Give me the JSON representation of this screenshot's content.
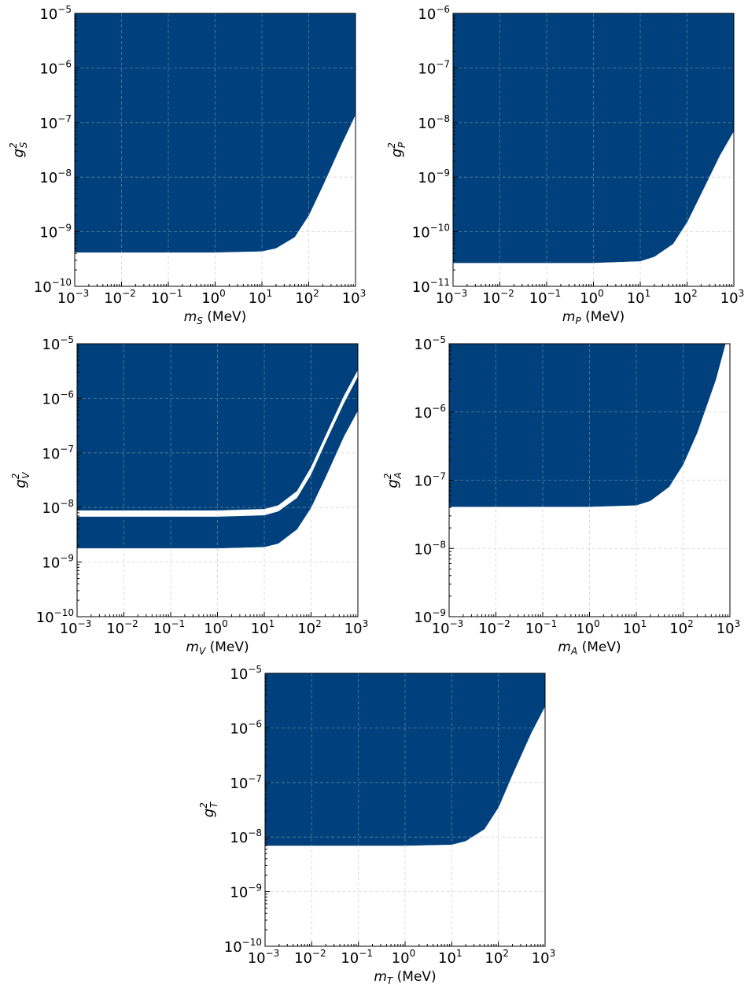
{
  "colors": {
    "fill": "#00417d",
    "gap": "#ffffff",
    "grid": "#b0b0b0"
  },
  "chart_data": [
    {
      "type": "area",
      "xscale": "log",
      "yscale": "log",
      "xlim": [
        0.001,
        1000
      ],
      "ylim": [
        1e-10,
        1e-05
      ],
      "grid": true,
      "xlabel_sym": "m",
      "xlabel_sub": "S",
      "xlabel_unit": "(MeV)",
      "ylabel_sym": "g",
      "ylabel_sup": "2",
      "ylabel_sub": "S",
      "x_ticks": [
        {
          "base": "10",
          "exp": "−3"
        },
        {
          "base": "10",
          "exp": "−2"
        },
        {
          "base": "10",
          "exp": "−1"
        },
        {
          "base": "10",
          "exp": "0"
        },
        {
          "base": "10",
          "exp": "1"
        },
        {
          "base": "10",
          "exp": "2"
        },
        {
          "base": "10",
          "exp": "3"
        }
      ],
      "y_ticks": [
        {
          "base": "10",
          "exp": "−10"
        },
        {
          "base": "10",
          "exp": "−9"
        },
        {
          "base": "10",
          "exp": "−8"
        },
        {
          "base": "10",
          "exp": "−7"
        },
        {
          "base": "10",
          "exp": "−6"
        },
        {
          "base": "10",
          "exp": "−5"
        }
      ],
      "excluded_above": {
        "x": [
          0.001,
          1,
          10,
          20,
          50,
          100,
          200,
          500,
          1000
        ],
        "y": [
          4.2e-10,
          4.2e-10,
          4.4e-10,
          5e-10,
          8e-10,
          2e-09,
          7e-09,
          4e-08,
          1.4e-07
        ]
      }
    },
    {
      "type": "area",
      "xscale": "log",
      "yscale": "log",
      "xlim": [
        0.001,
        1000
      ],
      "ylim": [
        1e-11,
        1e-06
      ],
      "grid": true,
      "xlabel_sym": "m",
      "xlabel_sub": "P",
      "xlabel_unit": "(MeV)",
      "ylabel_sym": "g",
      "ylabel_sup": "2",
      "ylabel_sub": "P",
      "x_ticks": [
        {
          "base": "10",
          "exp": "−3"
        },
        {
          "base": "10",
          "exp": "−2"
        },
        {
          "base": "10",
          "exp": "−1"
        },
        {
          "base": "10",
          "exp": "0"
        },
        {
          "base": "10",
          "exp": "1"
        },
        {
          "base": "10",
          "exp": "2"
        },
        {
          "base": "10",
          "exp": "3"
        }
      ],
      "y_ticks": [
        {
          "base": "10",
          "exp": "−11"
        },
        {
          "base": "10",
          "exp": "−10"
        },
        {
          "base": "10",
          "exp": "−9"
        },
        {
          "base": "10",
          "exp": "−8"
        },
        {
          "base": "10",
          "exp": "−7"
        },
        {
          "base": "10",
          "exp": "−6"
        }
      ],
      "excluded_above": {
        "x": [
          0.001,
          1,
          10,
          20,
          50,
          100,
          200,
          500,
          1000
        ],
        "y": [
          2.7e-11,
          2.7e-11,
          2.9e-11,
          3.5e-11,
          6e-11,
          1.5e-10,
          5e-10,
          2.5e-09,
          7e-09
        ]
      }
    },
    {
      "type": "area",
      "xscale": "log",
      "yscale": "log",
      "xlim": [
        0.001,
        1000
      ],
      "ylim": [
        1e-10,
        1e-05
      ],
      "grid": true,
      "xlabel_sym": "m",
      "xlabel_sub": "V",
      "xlabel_unit": "(MeV)",
      "ylabel_sym": "g",
      "ylabel_sup": "2",
      "ylabel_sub": "V",
      "x_ticks": [
        {
          "base": "10",
          "exp": "−3"
        },
        {
          "base": "10",
          "exp": "−2"
        },
        {
          "base": "10",
          "exp": "−1"
        },
        {
          "base": "10",
          "exp": "0"
        },
        {
          "base": "10",
          "exp": "1"
        },
        {
          "base": "10",
          "exp": "2"
        },
        {
          "base": "10",
          "exp": "3"
        }
      ],
      "y_ticks": [
        {
          "base": "10",
          "exp": "−10"
        },
        {
          "base": "10",
          "exp": "−9"
        },
        {
          "base": "10",
          "exp": "−8"
        },
        {
          "base": "10",
          "exp": "−7"
        },
        {
          "base": "10",
          "exp": "−6"
        },
        {
          "base": "10",
          "exp": "−5"
        }
      ],
      "excluded_above": {
        "x": [
          0.001,
          1,
          10,
          20,
          50,
          100,
          200,
          500,
          1000
        ],
        "y": [
          1.8e-09,
          1.8e-09,
          1.9e-09,
          2.2e-09,
          4e-09,
          1e-08,
          3.5e-08,
          2e-07,
          6e-07
        ]
      },
      "allowed_gap": {
        "x": [
          0.001,
          1,
          10,
          20,
          50,
          100,
          200,
          500,
          1000
        ],
        "low": [
          6.8e-09,
          6.8e-09,
          7.2e-09,
          8.5e-09,
          1.5e-08,
          4e-08,
          1.5e-07,
          8e-07,
          2.5e-06
        ],
        "high": [
          8.8e-09,
          8.8e-09,
          9.4e-09,
          1.1e-08,
          2e-08,
          5.5e-08,
          2e-07,
          1.1e-06,
          3.3e-06
        ]
      }
    },
    {
      "type": "area",
      "xscale": "log",
      "yscale": "log",
      "xlim": [
        0.001,
        1000
      ],
      "ylim": [
        1e-09,
        1e-05
      ],
      "grid": true,
      "xlabel_sym": "m",
      "xlabel_sub": "A",
      "xlabel_unit": "(MeV)",
      "ylabel_sym": "g",
      "ylabel_sup": "2",
      "ylabel_sub": "A",
      "x_ticks": [
        {
          "base": "10",
          "exp": "−3"
        },
        {
          "base": "10",
          "exp": "−2"
        },
        {
          "base": "10",
          "exp": "−1"
        },
        {
          "base": "10",
          "exp": "0"
        },
        {
          "base": "10",
          "exp": "1"
        },
        {
          "base": "10",
          "exp": "2"
        },
        {
          "base": "10",
          "exp": "3"
        }
      ],
      "y_ticks": [
        {
          "base": "10",
          "exp": "−9"
        },
        {
          "base": "10",
          "exp": "−8"
        },
        {
          "base": "10",
          "exp": "−7"
        },
        {
          "base": "10",
          "exp": "−6"
        },
        {
          "base": "10",
          "exp": "−5"
        }
      ],
      "excluded_above": {
        "x": [
          0.001,
          1,
          10,
          20,
          50,
          100,
          200,
          500,
          800
        ],
        "y": [
          4.1e-08,
          4.1e-08,
          4.3e-08,
          5e-08,
          8e-08,
          1.7e-07,
          5e-07,
          3e-06,
          1e-05
        ]
      }
    },
    {
      "type": "area",
      "xscale": "log",
      "yscale": "log",
      "xlim": [
        0.001,
        1000
      ],
      "ylim": [
        1e-10,
        1e-05
      ],
      "grid": true,
      "xlabel_sym": "m",
      "xlabel_sub": "T",
      "xlabel_unit": "(MeV)",
      "ylabel_sym": "g",
      "ylabel_sup": "2",
      "ylabel_sub": "T",
      "x_ticks": [
        {
          "base": "10",
          "exp": "−3"
        },
        {
          "base": "10",
          "exp": "−2"
        },
        {
          "base": "10",
          "exp": "−1"
        },
        {
          "base": "10",
          "exp": "0"
        },
        {
          "base": "10",
          "exp": "1"
        },
        {
          "base": "10",
          "exp": "2"
        },
        {
          "base": "10",
          "exp": "3"
        }
      ],
      "y_ticks": [
        {
          "base": "10",
          "exp": "−10"
        },
        {
          "base": "10",
          "exp": "−9"
        },
        {
          "base": "10",
          "exp": "−8"
        },
        {
          "base": "10",
          "exp": "−7"
        },
        {
          "base": "10",
          "exp": "−6"
        },
        {
          "base": "10",
          "exp": "−5"
        }
      ],
      "excluded_above": {
        "x": [
          0.001,
          1,
          10,
          20,
          50,
          100,
          200,
          500,
          1000
        ],
        "y": [
          7e-09,
          7e-09,
          7.3e-09,
          8.5e-09,
          1.4e-08,
          3.5e-08,
          1.4e-07,
          8e-07,
          2.5e-06
        ]
      }
    }
  ]
}
